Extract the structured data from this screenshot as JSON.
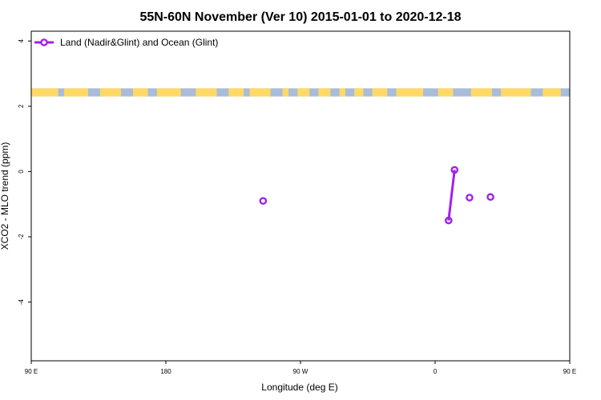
{
  "chart_data": {
    "type": "scatter",
    "title": "55N-60N November (Ver 10)   2015-01-01 to 2020-12-18",
    "xlabel": "Longitude (deg E)",
    "ylabel": "XCO2 - MLO trend (ppm)",
    "xlim": [
      90,
      450
    ],
    "ylim": [
      -5.8,
      4.3
    ],
    "x_ticks": [
      {
        "value": 90,
        "label": "90 E"
      },
      {
        "value": 180,
        "label": "180"
      },
      {
        "value": 270,
        "label": "90 W"
      },
      {
        "value": 360,
        "label": "0"
      },
      {
        "value": 450,
        "label": "90 E"
      },
      {
        "value": 540,
        "label": "180"
      }
    ],
    "y_ticks": [
      {
        "value": 4,
        "label": "4"
      },
      {
        "value": 2,
        "label": "2"
      },
      {
        "value": 0,
        "label": "0"
      },
      {
        "value": -2,
        "label": "-2"
      },
      {
        "value": -4,
        "label": "-4"
      }
    ],
    "legend": {
      "position": "top-left",
      "entries": [
        "Land (Nadir&Glint) and Ocean (Glint)"
      ]
    },
    "series": [
      {
        "name": "Land (Nadir&Glint) and Ocean (Glint)",
        "color": "#a020f0",
        "points": [
          {
            "x": 245,
            "y": -0.9
          },
          {
            "x": 369,
            "y": -1.5
          },
          {
            "x": 373,
            "y": 0.05
          },
          {
            "x": 383,
            "y": -0.8
          },
          {
            "x": 397,
            "y": -0.78
          }
        ],
        "line_segments": [
          [
            {
              "x": 369,
              "y": -1.5
            },
            {
              "x": 373,
              "y": 0.05
            }
          ]
        ]
      }
    ],
    "map_strip": {
      "y_range": [
        2.3,
        2.55
      ],
      "land_color": "#ffd966",
      "ocean_color": "#a9bcd9"
    },
    "grid": false
  }
}
